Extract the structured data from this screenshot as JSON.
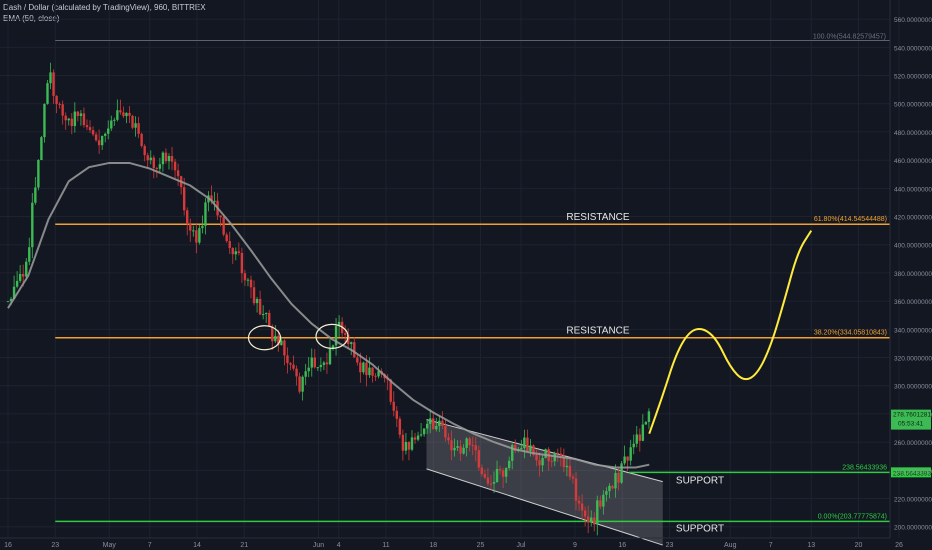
{
  "header": {
    "title": "Dash / Dollar (calculated by TradingView), 960, BITTREX",
    "indicator": "EMA (50, close)"
  },
  "colors": {
    "background": "#131722",
    "grid": "#1e2230",
    "up": "#26a69a",
    "down": "#ef5350",
    "candle_up": "#3cba54",
    "candle_down": "#d63a3a",
    "ema": "#9e9e9e",
    "fib": "#f2a12e",
    "support": "#2ecc40",
    "projection": "#ffeb3b",
    "channel": "#cfcfcf",
    "axis_text": "#8a8f9c",
    "label_text": "#e6e6e6"
  },
  "chart_data": {
    "type": "candlestick",
    "y_axis": {
      "range": [
        192,
        560
      ],
      "ticks": [
        200,
        220,
        240,
        260,
        280,
        300,
        320,
        340,
        360,
        380,
        400,
        420,
        440,
        460,
        480,
        500,
        520,
        540,
        560
      ],
      "tick_labels": [
        "200.0000000",
        "220.0000000",
        "240.0000000",
        "260.0000000",
        "280.0000000",
        "300.0000000",
        "320.0000000",
        "340.0000000",
        "360.0000000",
        "380.0000000",
        "400.0000000",
        "420.0000000",
        "440.0000000",
        "460.0000000",
        "480.0000000",
        "500.0000000",
        "520.0000000",
        "540.0000000",
        "560.0000000"
      ]
    },
    "x_axis": {
      "ticks": [
        {
          "label": "16",
          "day": 0
        },
        {
          "label": "23",
          "day": 7
        },
        {
          "label": "May",
          "day": 15
        },
        {
          "label": "7",
          "day": 21
        },
        {
          "label": "14",
          "day": 28
        },
        {
          "label": "21",
          "day": 35
        },
        {
          "label": "Jun",
          "day": 46
        },
        {
          "label": "4",
          "day": 49
        },
        {
          "label": "11",
          "day": 56
        },
        {
          "label": "18",
          "day": 63
        },
        {
          "label": "25",
          "day": 70
        },
        {
          "label": "Jul",
          "day": 76
        },
        {
          "label": "9",
          "day": 84
        },
        {
          "label": "16",
          "day": 91
        },
        {
          "label": "23",
          "day": 98
        },
        {
          "label": "Aug",
          "day": 107
        },
        {
          "label": "7",
          "day": 113
        },
        {
          "label": "13",
          "day": 119
        },
        {
          "label": "20",
          "day": 126
        },
        {
          "label": "26",
          "day": 132
        }
      ]
    },
    "price_path": [
      [
        0,
        360
      ],
      [
        3,
        395
      ],
      [
        6,
        520
      ],
      [
        8,
        500
      ],
      [
        10,
        488
      ],
      [
        13,
        475
      ],
      [
        16,
        495
      ],
      [
        18,
        485
      ],
      [
        20,
        470
      ],
      [
        22,
        462
      ],
      [
        24,
        455
      ],
      [
        26,
        430
      ],
      [
        28,
        410
      ],
      [
        30,
        430
      ],
      [
        32,
        405
      ],
      [
        34,
        400
      ],
      [
        35,
        382
      ],
      [
        36,
        360
      ],
      [
        38,
        345
      ],
      [
        41,
        330
      ],
      [
        42,
        318
      ],
      [
        43,
        292
      ],
      [
        45,
        312
      ],
      [
        47,
        322
      ],
      [
        49,
        336
      ],
      [
        51,
        320
      ],
      [
        53,
        318
      ],
      [
        55,
        308
      ],
      [
        56,
        300
      ],
      [
        57,
        280
      ],
      [
        58,
        262
      ],
      [
        60,
        265
      ],
      [
        62,
        268
      ],
      [
        64,
        270
      ],
      [
        66,
        262
      ],
      [
        68,
        255
      ],
      [
        69,
        248
      ],
      [
        70,
        236
      ],
      [
        71,
        232
      ],
      [
        72,
        240
      ],
      [
        74,
        248
      ],
      [
        76,
        255
      ],
      [
        78,
        252
      ],
      [
        80,
        256
      ],
      [
        82,
        240
      ],
      [
        84,
        228
      ],
      [
        86,
        212
      ],
      [
        87,
        207
      ],
      [
        88,
        214
      ],
      [
        90,
        230
      ],
      [
        91,
        248
      ],
      [
        93,
        268
      ],
      [
        95,
        276
      ]
    ],
    "ema_50": [
      [
        0,
        355
      ],
      [
        3,
        378
      ],
      [
        6,
        418
      ],
      [
        9,
        445
      ],
      [
        12,
        455
      ],
      [
        15,
        458
      ],
      [
        18,
        458
      ],
      [
        21,
        454
      ],
      [
        24,
        448
      ],
      [
        27,
        442
      ],
      [
        30,
        432
      ],
      [
        33,
        415
      ],
      [
        36,
        396
      ],
      [
        39,
        376
      ],
      [
        42,
        358
      ],
      [
        45,
        344
      ],
      [
        48,
        333
      ],
      [
        51,
        325
      ],
      [
        54,
        315
      ],
      [
        57,
        302
      ],
      [
        60,
        290
      ],
      [
        63,
        281
      ],
      [
        66,
        273
      ],
      [
        69,
        266
      ],
      [
        72,
        260
      ],
      [
        75,
        255
      ],
      [
        78,
        252
      ],
      [
        81,
        250
      ],
      [
        84,
        248
      ],
      [
        87,
        244
      ],
      [
        90,
        242
      ],
      [
        93,
        242
      ],
      [
        95,
        244
      ]
    ],
    "current_price": {
      "price": 278.8,
      "label": "278.76012813",
      "countdown": "05:53:41"
    },
    "lines": [
      {
        "type": "fib",
        "label": "100.0%(544.82579457)",
        "price": 544.83,
        "visible": true
      },
      {
        "type": "fib",
        "label": "61.80%(414.54544488)",
        "price": 414.55,
        "text": "RESISTANCE"
      },
      {
        "type": "fib",
        "label": "38.20%(334.05810843)",
        "price": 334.06,
        "text": "RESISTANCE"
      },
      {
        "type": "fib",
        "label": "0.00%(203.77775874)",
        "price": 203.78,
        "text": "SUPPORT"
      },
      {
        "type": "level",
        "label": "238.56433936",
        "price": 238.56,
        "text": "SUPPORT"
      }
    ],
    "channel": {
      "upper": [
        [
          62,
          276
        ],
        [
          97,
          232
        ]
      ],
      "lower": [
        [
          62,
          241
        ],
        [
          97,
          187
        ]
      ]
    },
    "circles": [
      {
        "day": 38,
        "price": 334
      },
      {
        "day": 48,
        "price": 335
      }
    ],
    "projection": [
      [
        95,
        266
      ],
      [
        97,
        293
      ],
      [
        99,
        323
      ],
      [
        101,
        339
      ],
      [
        103,
        341
      ],
      [
        105,
        333
      ],
      [
        107,
        313
      ],
      [
        109,
        303
      ],
      [
        111,
        308
      ],
      [
        113,
        328
      ],
      [
        115,
        360
      ],
      [
        117,
        395
      ],
      [
        119,
        410
      ]
    ]
  }
}
